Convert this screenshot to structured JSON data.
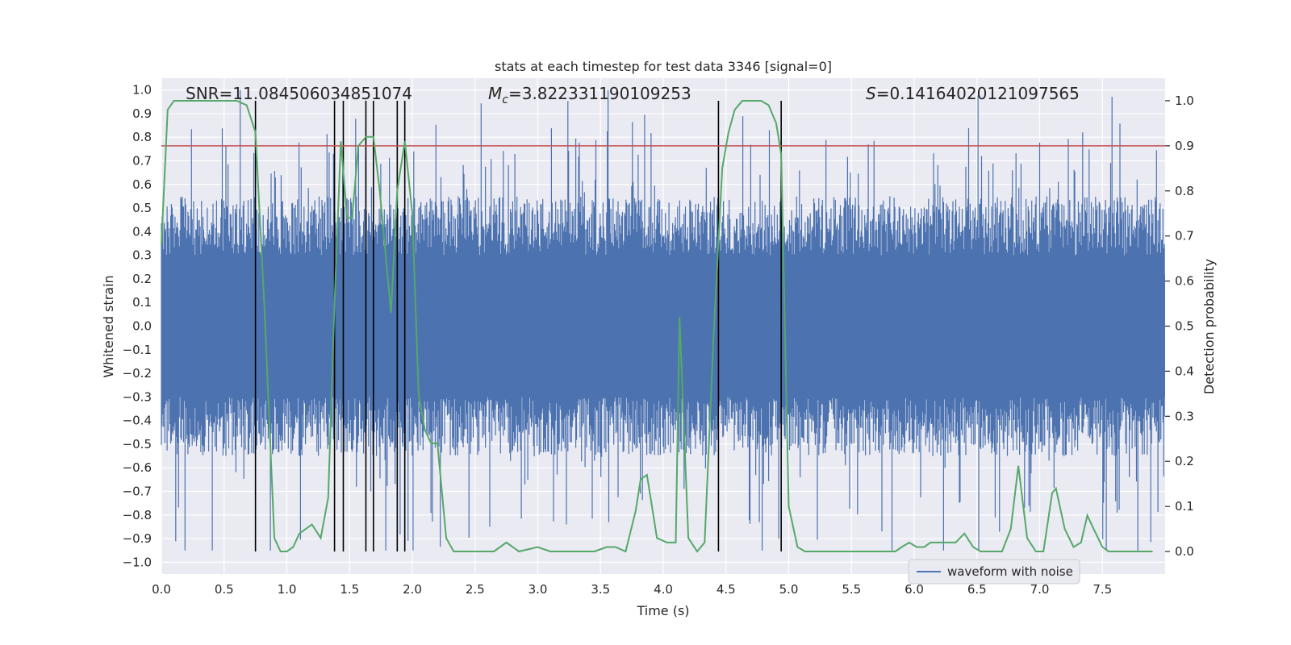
{
  "chart_data": {
    "type": "line",
    "title": "stats at each timestep for test data 3346 [signal=0]",
    "xlabel": "Time (s)",
    "ylabel": "Whitened strain",
    "y2label": "Detection probability",
    "xlim": [
      0,
      8
    ],
    "ylim": [
      -1.05,
      1.05
    ],
    "y2lim": [
      -0.05,
      1.05
    ],
    "xticks": [
      "0.0",
      "0.5",
      "1.0",
      "1.5",
      "2.0",
      "2.5",
      "3.0",
      "3.5",
      "4.0",
      "4.5",
      "5.0",
      "5.5",
      "6.0",
      "6.5",
      "7.0",
      "7.5"
    ],
    "xtick_values": [
      0,
      0.5,
      1,
      1.5,
      2,
      2.5,
      3,
      3.5,
      4,
      4.5,
      5,
      5.5,
      6,
      6.5,
      7,
      7.5
    ],
    "yticks": [
      "1.0",
      "0.9",
      "0.8",
      "0.7",
      "0.6",
      "0.5",
      "0.4",
      "0.3",
      "0.2",
      "0.1",
      "0.0",
      "−0.1",
      "−0.2",
      "−0.3",
      "−0.4",
      "−0.5",
      "−0.6",
      "−0.7",
      "−0.8",
      "−0.9",
      "−1.0"
    ],
    "ytick_values": [
      1.0,
      0.9,
      0.8,
      0.7,
      0.6,
      0.5,
      0.4,
      0.3,
      0.2,
      0.1,
      0.0,
      -0.1,
      -0.2,
      -0.3,
      -0.4,
      -0.5,
      -0.6,
      -0.7,
      -0.8,
      -0.9,
      -1.0
    ],
    "y2ticks": [
      "1.0",
      "0.9",
      "0.8",
      "0.7",
      "0.6",
      "0.5",
      "0.4",
      "0.3",
      "0.2",
      "0.1",
      "0.0"
    ],
    "y2tick_values": [
      1.0,
      0.9,
      0.8,
      0.7,
      0.6,
      0.5,
      0.4,
      0.3,
      0.2,
      0.1,
      0.0
    ],
    "grid": true,
    "legend": {
      "entries": [
        "waveform with noise"
      ],
      "placement": "lower right"
    },
    "annotations": {
      "snr": "SNR=11.084506034851074",
      "mc_symbol": "M",
      "mc_sub": "c",
      "mc_value": "=3.822331190109253",
      "s_symbol": "S",
      "s_value": "=0.14164020121097565"
    },
    "threshold": {
      "axis": "right",
      "value": 0.9,
      "color": "#c44e52"
    },
    "vlines": [
      0.75,
      1.38,
      1.45,
      1.63,
      1.69,
      1.88,
      1.94,
      4.44,
      4.94
    ],
    "colors": {
      "waveform": "#4c72b0",
      "probability": "#55a868",
      "vline": "#000000",
      "plot_bg": "#eaeaf2",
      "grid": "#ffffff"
    },
    "series": [
      {
        "name": "waveform with noise",
        "axis": "left",
        "description_values": "dense noise, band approx -0.35 to 0.4, peaks to about +/-1.0",
        "band_low": -0.35,
        "band_high": 0.4
      },
      {
        "axis": "right",
        "x": [
          0.0,
          0.05,
          0.1,
          0.15,
          0.2,
          0.3,
          0.4,
          0.5,
          0.6,
          0.68,
          0.75,
          0.82,
          0.9,
          0.95,
          1.0,
          1.05,
          1.1,
          1.2,
          1.27,
          1.33,
          1.38,
          1.43,
          1.48,
          1.52,
          1.57,
          1.63,
          1.69,
          1.74,
          1.8,
          1.83,
          1.88,
          1.94,
          2.0,
          2.05,
          2.1,
          2.15,
          2.2,
          2.27,
          2.33,
          2.4,
          2.45,
          2.55,
          2.65,
          2.75,
          2.85,
          3.0,
          3.1,
          3.2,
          3.3,
          3.45,
          3.55,
          3.62,
          3.7,
          3.78,
          3.82,
          3.87,
          3.95,
          4.03,
          4.1,
          4.13,
          4.2,
          4.27,
          4.33,
          4.4,
          4.47,
          4.52,
          4.57,
          4.63,
          4.7,
          4.78,
          4.84,
          4.9,
          4.94,
          5.0,
          5.07,
          5.13,
          5.2,
          5.3,
          5.5,
          5.7,
          5.85,
          5.9,
          5.96,
          6.02,
          6.08,
          6.13,
          6.2,
          6.26,
          6.33,
          6.4,
          6.47,
          6.53,
          6.6,
          6.7,
          6.77,
          6.83,
          6.9,
          6.97,
          7.03,
          7.1,
          7.13,
          7.2,
          7.27,
          7.33,
          7.38,
          7.43,
          7.5,
          7.55,
          7.7,
          7.9
        ],
        "y": [
          0.68,
          0.98,
          1.0,
          1.0,
          1.0,
          1.0,
          1.0,
          1.0,
          1.0,
          0.99,
          0.93,
          0.55,
          0.03,
          0.0,
          0.0,
          0.01,
          0.04,
          0.06,
          0.03,
          0.12,
          0.55,
          0.91,
          0.74,
          0.74,
          0.9,
          0.92,
          0.92,
          0.8,
          0.62,
          0.53,
          0.8,
          0.91,
          0.75,
          0.35,
          0.27,
          0.24,
          0.24,
          0.03,
          0.0,
          0.0,
          0.0,
          0.0,
          0.0,
          0.02,
          0.0,
          0.01,
          0.0,
          0.0,
          0.0,
          0.0,
          0.01,
          0.01,
          0.0,
          0.09,
          0.16,
          0.17,
          0.03,
          0.02,
          0.02,
          0.52,
          0.03,
          0.0,
          0.02,
          0.47,
          0.85,
          0.93,
          0.98,
          1.0,
          1.0,
          1.0,
          0.99,
          0.95,
          0.88,
          0.1,
          0.01,
          0.0,
          0.0,
          0.0,
          0.0,
          0.0,
          0.0,
          0.01,
          0.02,
          0.01,
          0.01,
          0.02,
          0.02,
          0.02,
          0.02,
          0.04,
          0.01,
          0.0,
          0.0,
          0.0,
          0.05,
          0.19,
          0.03,
          0.0,
          0.0,
          0.13,
          0.14,
          0.05,
          0.01,
          0.02,
          0.08,
          0.05,
          0.01,
          0.0,
          0.0,
          0.0
        ]
      }
    ]
  }
}
